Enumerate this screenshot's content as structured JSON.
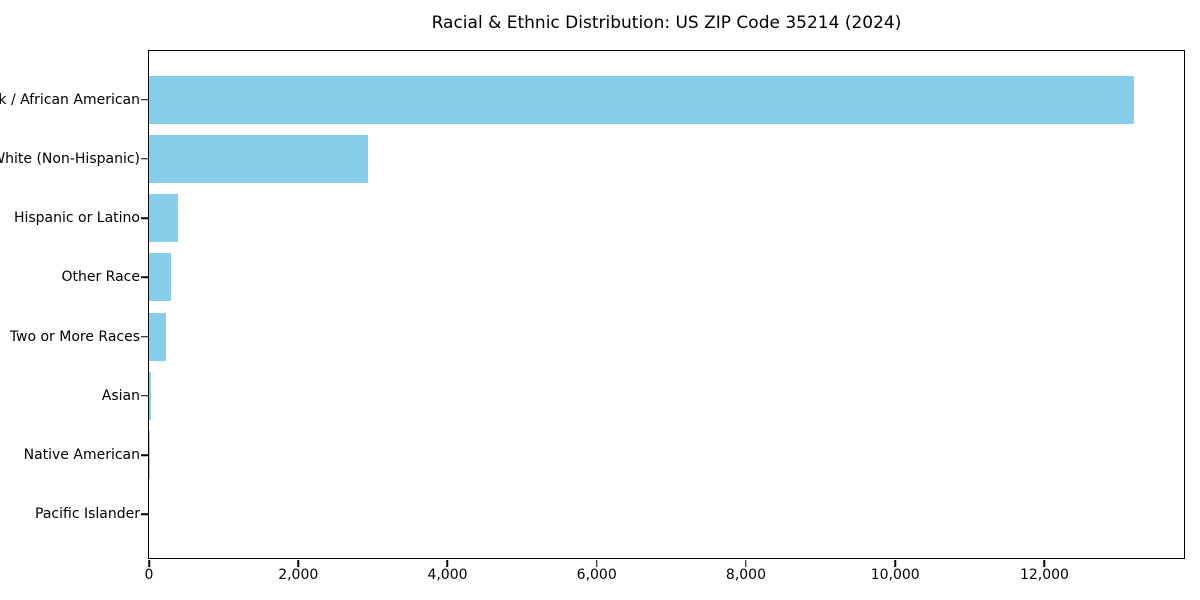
{
  "chart_data": {
    "type": "bar",
    "orientation": "horizontal",
    "title": "Racial & Ethnic Distribution: US ZIP Code 35214 (2024)",
    "categories": [
      "Black / African American",
      "White (Non-Hispanic)",
      "Hispanic or Latino",
      "Other Race",
      "Two or More Races",
      "Asian",
      "Native American",
      "Pacific Islander"
    ],
    "values": [
      13200,
      2930,
      385,
      290,
      225,
      22,
      8,
      0
    ],
    "xlabel": "",
    "ylabel": "",
    "xlim": [
      0,
      13870
    ],
    "xticks": [
      0,
      2000,
      4000,
      6000,
      8000,
      10000,
      12000
    ],
    "xtick_labels": [
      "0",
      "2,000",
      "4,000",
      "6,000",
      "8,000",
      "10,000",
      "12,000"
    ],
    "grid": false,
    "legend": "none",
    "bar_color": "#87CEEB",
    "spine_color": "#000000",
    "text_color": "#000000",
    "background_color": "#FFFFFF"
  }
}
